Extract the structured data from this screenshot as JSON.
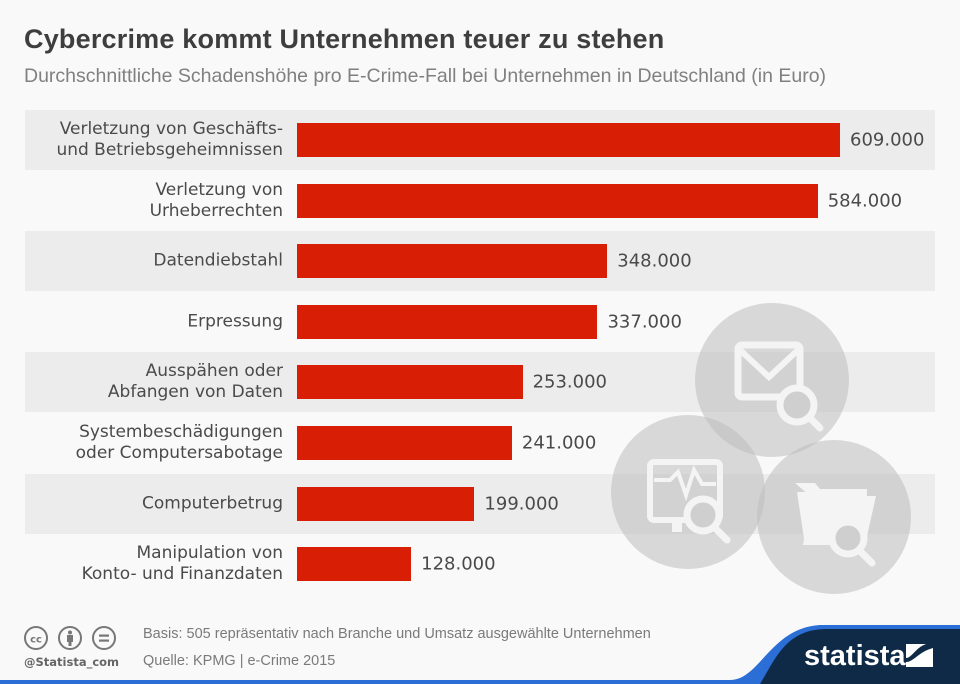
{
  "header": {
    "title": "Cybercrime kommt Unternehmen teuer zu stehen",
    "subtitle": "Durchschnittliche Schadenshöhe pro E-Crime-Fall bei Unternehmen in Deutschland (in Euro)"
  },
  "chart_data": {
    "type": "bar",
    "orientation": "horizontal",
    "title": "Cybercrime kommt Unternehmen teuer zu stehen",
    "subtitle": "Durchschnittliche Schadenshöhe pro E-Crime-Fall bei Unternehmen in Deutschland (in Euro)",
    "xlabel": "",
    "ylabel": "",
    "unit": "Euro",
    "bar_color": "#d81e05",
    "grid": false,
    "categories": [
      [
        "Verletzung von Geschäfts-",
        "und Betriebsgeheimnissen"
      ],
      [
        "Verletzung von",
        "Urheberrechten"
      ],
      [
        "Datendiebstahl"
      ],
      [
        "Erpressung"
      ],
      [
        "Ausspähen oder",
        "Abfangen von Daten"
      ],
      [
        "Systembeschädigungen",
        "oder Computersabotage"
      ],
      [
        "Computerbetrug"
      ],
      [
        "Manipulation von",
        "Konto- und Finanzdaten"
      ]
    ],
    "values": [
      609000,
      584000,
      348000,
      337000,
      253000,
      241000,
      199000,
      128000
    ],
    "value_labels": [
      "609.000",
      "584.000",
      "348.000",
      "337.000",
      "253.000",
      "241.000",
      "199.000",
      "128.000"
    ],
    "xlim": [
      0,
      609000
    ]
  },
  "illustration": {
    "icons": [
      "email-search-icon",
      "monitor-search-icon",
      "folder-search-icon"
    ]
  },
  "footer": {
    "basis": "Basis: 505 repräsentativ nach Branche und Umsatz ausgewählte Unternehmen",
    "source": "Quelle: KPMG | e-Crime 2015",
    "handle": "@Statista_com",
    "brand": "statista",
    "license_icons": [
      "cc-icon",
      "attribution-icon",
      "no-derivatives-icon"
    ],
    "colors": {
      "brand_dark": "#0e2a47",
      "brand_blue": "#2a6ed6"
    }
  }
}
